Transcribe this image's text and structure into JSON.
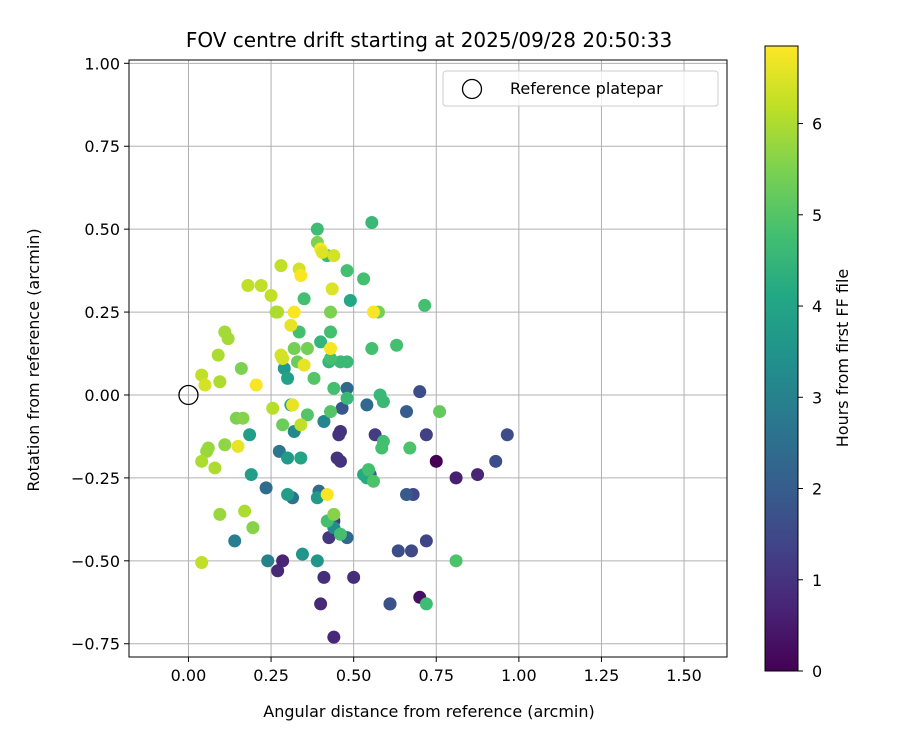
{
  "chart_data": {
    "type": "scatter",
    "title": "FOV centre drift starting at 2025/09/28 20:50:33",
    "xlabel": "Angular distance from reference (arcmin)",
    "ylabel": "Rotation from reference (arcmin)",
    "xlim": [
      -0.18,
      1.63
    ],
    "ylim": [
      -0.79,
      1.01
    ],
    "xticks": [
      0.0,
      0.25,
      0.5,
      0.75,
      1.0,
      1.25,
      1.5
    ],
    "xtick_labels": [
      "0.00",
      "0.25",
      "0.50",
      "0.75",
      "1.00",
      "1.25",
      "1.50"
    ],
    "yticks": [
      -0.75,
      -0.5,
      -0.25,
      0.0,
      0.25,
      0.5,
      0.75,
      1.0
    ],
    "ytick_labels": [
      "−0.75",
      "−0.50",
      "−0.25",
      "0.00",
      "0.25",
      "0.50",
      "0.75",
      "1.00"
    ],
    "grid": true,
    "legend": {
      "label": "Reference platepar",
      "location": "top-right"
    },
    "reference_point": {
      "x": 0.0,
      "y": 0.0
    },
    "colorbar": {
      "label": "Hours from first FF file",
      "range": [
        0,
        6.85
      ],
      "ticks": [
        0,
        1,
        2,
        3,
        4,
        5,
        6
      ],
      "tick_labels": [
        "0",
        "1",
        "2",
        "3",
        "4",
        "5",
        "6"
      ],
      "colormap": "viridis"
    },
    "points": [
      {
        "x": 0.75,
        "y": -0.2,
        "h": 0.0
      },
      {
        "x": 0.7,
        "y": -0.61,
        "h": 0.3
      },
      {
        "x": 0.81,
        "y": -0.25,
        "h": 0.6
      },
      {
        "x": 0.875,
        "y": -0.24,
        "h": 0.7
      },
      {
        "x": 0.44,
        "y": -0.73,
        "h": 0.8
      },
      {
        "x": 0.4,
        "y": -0.63,
        "h": 0.8
      },
      {
        "x": 0.27,
        "y": -0.53,
        "h": 0.8
      },
      {
        "x": 0.285,
        "y": -0.5,
        "h": 0.7
      },
      {
        "x": 0.41,
        "y": -0.55,
        "h": 0.9
      },
      {
        "x": 0.5,
        "y": -0.55,
        "h": 0.9
      },
      {
        "x": 0.61,
        "y": -0.63,
        "h": 1.5
      },
      {
        "x": 0.46,
        "y": -0.11,
        "h": 1.0
      },
      {
        "x": 0.455,
        "y": -0.12,
        "h": 1.0
      },
      {
        "x": 0.45,
        "y": -0.19,
        "h": 1.0
      },
      {
        "x": 0.46,
        "y": -0.2,
        "h": 1.0
      },
      {
        "x": 0.425,
        "y": -0.43,
        "h": 1.1
      },
      {
        "x": 0.44,
        "y": -0.38,
        "h": 1.1
      },
      {
        "x": 0.565,
        "y": -0.12,
        "h": 1.2
      },
      {
        "x": 0.72,
        "y": -0.12,
        "h": 1.3
      },
      {
        "x": 0.72,
        "y": -0.44,
        "h": 1.4
      },
      {
        "x": 0.68,
        "y": -0.3,
        "h": 1.5
      },
      {
        "x": 0.675,
        "y": -0.47,
        "h": 1.5
      },
      {
        "x": 0.635,
        "y": -0.47,
        "h": 1.6
      },
      {
        "x": 0.93,
        "y": -0.2,
        "h": 1.6
      },
      {
        "x": 0.965,
        "y": -0.12,
        "h": 1.6
      },
      {
        "x": 0.7,
        "y": 0.01,
        "h": 1.6
      },
      {
        "x": 0.61,
        "y": -0.63,
        "h": 1.7
      },
      {
        "x": 0.465,
        "y": -0.04,
        "h": 1.8
      },
      {
        "x": 0.66,
        "y": -0.3,
        "h": 1.9
      },
      {
        "x": 0.55,
        "y": -0.24,
        "h": 2.0
      },
      {
        "x": 0.66,
        "y": -0.05,
        "h": 2.0
      },
      {
        "x": 0.54,
        "y": -0.03,
        "h": 2.3
      },
      {
        "x": 0.48,
        "y": 0.02,
        "h": 2.3
      },
      {
        "x": 0.48,
        "y": -0.43,
        "h": 2.3
      },
      {
        "x": 0.395,
        "y": -0.29,
        "h": 2.4
      },
      {
        "x": 0.235,
        "y": -0.28,
        "h": 2.4
      },
      {
        "x": 0.315,
        "y": -0.31,
        "h": 2.6
      },
      {
        "x": 0.275,
        "y": -0.17,
        "h": 2.7
      },
      {
        "x": 0.14,
        "y": -0.44,
        "h": 2.9
      },
      {
        "x": 0.24,
        "y": -0.5,
        "h": 3.0
      },
      {
        "x": 0.41,
        "y": -0.08,
        "h": 3.1
      },
      {
        "x": 0.32,
        "y": -0.11,
        "h": 3.2
      },
      {
        "x": 0.44,
        "y": -0.4,
        "h": 3.3
      },
      {
        "x": 0.345,
        "y": -0.48,
        "h": 3.5
      },
      {
        "x": 0.39,
        "y": -0.5,
        "h": 3.6
      },
      {
        "x": 0.39,
        "y": -0.31,
        "h": 3.7
      },
      {
        "x": 0.3,
        "y": -0.19,
        "h": 3.7
      },
      {
        "x": 0.185,
        "y": -0.12,
        "h": 3.8
      },
      {
        "x": 0.19,
        "y": -0.24,
        "h": 3.8
      },
      {
        "x": 0.3,
        "y": -0.3,
        "h": 3.8
      },
      {
        "x": 0.29,
        "y": 0.08,
        "h": 3.7
      },
      {
        "x": 0.3,
        "y": 0.05,
        "h": 3.9
      },
      {
        "x": 0.31,
        "y": -0.03,
        "h": 3.9
      },
      {
        "x": 0.34,
        "y": -0.19,
        "h": 4.0
      },
      {
        "x": 0.49,
        "y": 0.285,
        "h": 4.1
      },
      {
        "x": 0.53,
        "y": -0.24,
        "h": 4.2
      },
      {
        "x": 0.54,
        "y": -0.25,
        "h": 4.2
      },
      {
        "x": 0.4,
        "y": 0.16,
        "h": 4.5
      },
      {
        "x": 0.425,
        "y": 0.1,
        "h": 4.5
      },
      {
        "x": 0.46,
        "y": 0.1,
        "h": 4.6
      },
      {
        "x": 0.48,
        "y": 0.1,
        "h": 4.6
      },
      {
        "x": 0.48,
        "y": -0.01,
        "h": 4.6
      },
      {
        "x": 0.42,
        "y": 0.42,
        "h": 4.6
      },
      {
        "x": 0.39,
        "y": 0.5,
        "h": 4.7
      },
      {
        "x": 0.555,
        "y": 0.52,
        "h": 4.6
      },
      {
        "x": 0.58,
        "y": 0.0,
        "h": 4.6
      },
      {
        "x": 0.59,
        "y": -0.02,
        "h": 4.6
      },
      {
        "x": 0.59,
        "y": -0.14,
        "h": 4.8
      },
      {
        "x": 0.585,
        "y": -0.16,
        "h": 4.8
      },
      {
        "x": 0.67,
        "y": -0.16,
        "h": 4.9
      },
      {
        "x": 0.715,
        "y": 0.27,
        "h": 4.8
      },
      {
        "x": 0.63,
        "y": 0.15,
        "h": 4.8
      },
      {
        "x": 0.555,
        "y": 0.14,
        "h": 4.8
      },
      {
        "x": 0.53,
        "y": 0.35,
        "h": 4.8
      },
      {
        "x": 0.48,
        "y": 0.375,
        "h": 4.8
      },
      {
        "x": 0.35,
        "y": 0.29,
        "h": 4.8
      },
      {
        "x": 0.335,
        "y": 0.19,
        "h": 4.8
      },
      {
        "x": 0.43,
        "y": 0.19,
        "h": 4.8
      },
      {
        "x": 0.43,
        "y": 0.11,
        "h": 4.8
      },
      {
        "x": 0.44,
        "y": 0.02,
        "h": 4.8
      },
      {
        "x": 0.545,
        "y": -0.225,
        "h": 4.8
      },
      {
        "x": 0.56,
        "y": -0.26,
        "h": 4.9
      },
      {
        "x": 0.42,
        "y": -0.38,
        "h": 4.8
      },
      {
        "x": 0.46,
        "y": -0.42,
        "h": 4.8
      },
      {
        "x": 0.72,
        "y": -0.63,
        "h": 4.7
      },
      {
        "x": 0.81,
        "y": -0.5,
        "h": 4.9
      },
      {
        "x": 0.43,
        "y": -0.05,
        "h": 5.0
      },
      {
        "x": 0.36,
        "y": -0.06,
        "h": 5.0
      },
      {
        "x": 0.38,
        "y": 0.05,
        "h": 5.0
      },
      {
        "x": 0.575,
        "y": 0.25,
        "h": 5.4
      },
      {
        "x": 0.76,
        "y": -0.05,
        "h": 5.2
      },
      {
        "x": 0.285,
        "y": -0.09,
        "h": 5.3
      },
      {
        "x": 0.33,
        "y": 0.1,
        "h": 5.3
      },
      {
        "x": 0.32,
        "y": 0.14,
        "h": 5.4
      },
      {
        "x": 0.36,
        "y": 0.14,
        "h": 5.4
      },
      {
        "x": 0.43,
        "y": 0.25,
        "h": 5.5
      },
      {
        "x": 0.39,
        "y": 0.46,
        "h": 5.5
      },
      {
        "x": 0.44,
        "y": -0.36,
        "h": 5.6
      },
      {
        "x": 0.195,
        "y": -0.4,
        "h": 5.6
      },
      {
        "x": 0.16,
        "y": 0.08,
        "h": 5.5
      },
      {
        "x": 0.145,
        "y": -0.07,
        "h": 5.5
      },
      {
        "x": 0.165,
        "y": -0.07,
        "h": 5.6
      },
      {
        "x": 0.11,
        "y": -0.15,
        "h": 5.7
      },
      {
        "x": 0.055,
        "y": -0.17,
        "h": 5.8
      },
      {
        "x": 0.06,
        "y": -0.16,
        "h": 5.8
      },
      {
        "x": 0.08,
        "y": -0.22,
        "h": 6.0
      },
      {
        "x": 0.095,
        "y": -0.36,
        "h": 5.8
      },
      {
        "x": 0.17,
        "y": -0.35,
        "h": 6.0
      },
      {
        "x": 0.04,
        "y": -0.2,
        "h": 6.0
      },
      {
        "x": 0.04,
        "y": -0.505,
        "h": 6.2
      },
      {
        "x": 0.09,
        "y": 0.12,
        "h": 6.0
      },
      {
        "x": 0.095,
        "y": 0.04,
        "h": 6.0
      },
      {
        "x": 0.11,
        "y": 0.19,
        "h": 5.9
      },
      {
        "x": 0.12,
        "y": 0.17,
        "h": 5.9
      },
      {
        "x": 0.04,
        "y": 0.06,
        "h": 6.2
      },
      {
        "x": 0.05,
        "y": 0.03,
        "h": 6.4
      },
      {
        "x": 0.18,
        "y": 0.33,
        "h": 6.2
      },
      {
        "x": 0.22,
        "y": 0.33,
        "h": 6.2
      },
      {
        "x": 0.25,
        "y": 0.3,
        "h": 6.2
      },
      {
        "x": 0.255,
        "y": -0.04,
        "h": 6.1
      },
      {
        "x": 0.27,
        "y": 0.25,
        "h": 6.1
      },
      {
        "x": 0.265,
        "y": 0.25,
        "h": 6.0
      },
      {
        "x": 0.28,
        "y": 0.39,
        "h": 6.2
      },
      {
        "x": 0.28,
        "y": 0.12,
        "h": 6.4
      },
      {
        "x": 0.285,
        "y": 0.11,
        "h": 6.4
      },
      {
        "x": 0.31,
        "y": 0.21,
        "h": 6.6
      },
      {
        "x": 0.32,
        "y": 0.25,
        "h": 6.8
      },
      {
        "x": 0.315,
        "y": -0.03,
        "h": 6.6
      },
      {
        "x": 0.335,
        "y": 0.38,
        "h": 6.4
      },
      {
        "x": 0.34,
        "y": 0.36,
        "h": 6.8
      },
      {
        "x": 0.34,
        "y": -0.09,
        "h": 6.2
      },
      {
        "x": 0.35,
        "y": 0.09,
        "h": 6.6
      },
      {
        "x": 0.4,
        "y": 0.44,
        "h": 6.8
      },
      {
        "x": 0.405,
        "y": 0.43,
        "h": 6.5
      },
      {
        "x": 0.44,
        "y": 0.42,
        "h": 6.4
      },
      {
        "x": 0.435,
        "y": 0.32,
        "h": 6.5
      },
      {
        "x": 0.43,
        "y": 0.14,
        "h": 6.8
      },
      {
        "x": 0.42,
        "y": -0.3,
        "h": 6.8
      },
      {
        "x": 0.56,
        "y": 0.25,
        "h": 6.8
      },
      {
        "x": 0.205,
        "y": 0.03,
        "h": 6.8
      },
      {
        "x": 0.15,
        "y": -0.155,
        "h": 6.6
      }
    ]
  }
}
